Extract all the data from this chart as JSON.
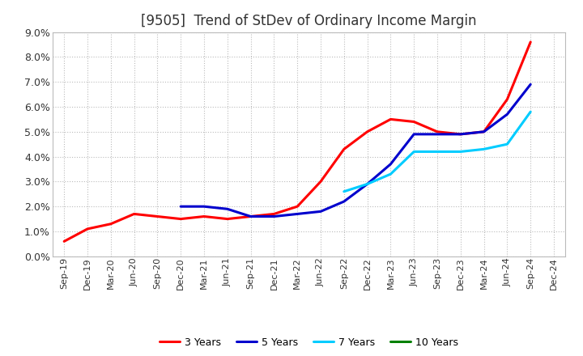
{
  "title": "[9505]  Trend of StDev of Ordinary Income Margin",
  "ylim": [
    0.0,
    0.09
  ],
  "yticks": [
    0.0,
    0.01,
    0.02,
    0.03,
    0.04,
    0.05,
    0.06,
    0.07,
    0.08,
    0.09
  ],
  "yticklabels": [
    "0.0%",
    "1.0%",
    "2.0%",
    "3.0%",
    "4.0%",
    "5.0%",
    "6.0%",
    "7.0%",
    "8.0%",
    "9.0%"
  ],
  "x_labels": [
    "Sep-19",
    "Dec-19",
    "Mar-20",
    "Jun-20",
    "Sep-20",
    "Dec-20",
    "Mar-21",
    "Jun-21",
    "Sep-21",
    "Dec-21",
    "Mar-22",
    "Jun-22",
    "Sep-22",
    "Dec-22",
    "Mar-23",
    "Jun-23",
    "Sep-23",
    "Dec-23",
    "Mar-24",
    "Jun-24",
    "Sep-24",
    "Dec-24"
  ],
  "series": {
    "3 Years": {
      "color": "#FF0000",
      "data": [
        0.006,
        0.011,
        0.013,
        0.017,
        0.016,
        0.015,
        0.016,
        0.015,
        0.016,
        0.017,
        0.02,
        0.03,
        0.043,
        0.05,
        0.055,
        0.054,
        0.05,
        0.049,
        0.05,
        0.063,
        0.086,
        null
      ]
    },
    "5 Years": {
      "color": "#0000CD",
      "data": [
        null,
        null,
        null,
        null,
        null,
        0.02,
        0.02,
        0.019,
        0.016,
        0.016,
        0.017,
        0.018,
        0.022,
        0.029,
        0.037,
        0.049,
        0.049,
        0.049,
        0.05,
        0.057,
        0.069,
        null
      ]
    },
    "7 Years": {
      "color": "#00CCFF",
      "data": [
        null,
        null,
        null,
        null,
        null,
        null,
        null,
        null,
        null,
        null,
        null,
        null,
        0.026,
        0.029,
        0.033,
        0.042,
        0.042,
        0.042,
        0.043,
        0.045,
        0.058,
        null
      ]
    },
    "10 Years": {
      "color": "#008000",
      "data": [
        null,
        null,
        null,
        null,
        null,
        null,
        null,
        null,
        null,
        null,
        null,
        null,
        null,
        null,
        null,
        null,
        null,
        null,
        null,
        null,
        null,
        null
      ]
    }
  },
  "background_color": "#FFFFFF",
  "plot_bg_color": "#FFFFFF",
  "grid_color": "#BBBBBB",
  "title_fontsize": 12,
  "line_width": 2.2
}
